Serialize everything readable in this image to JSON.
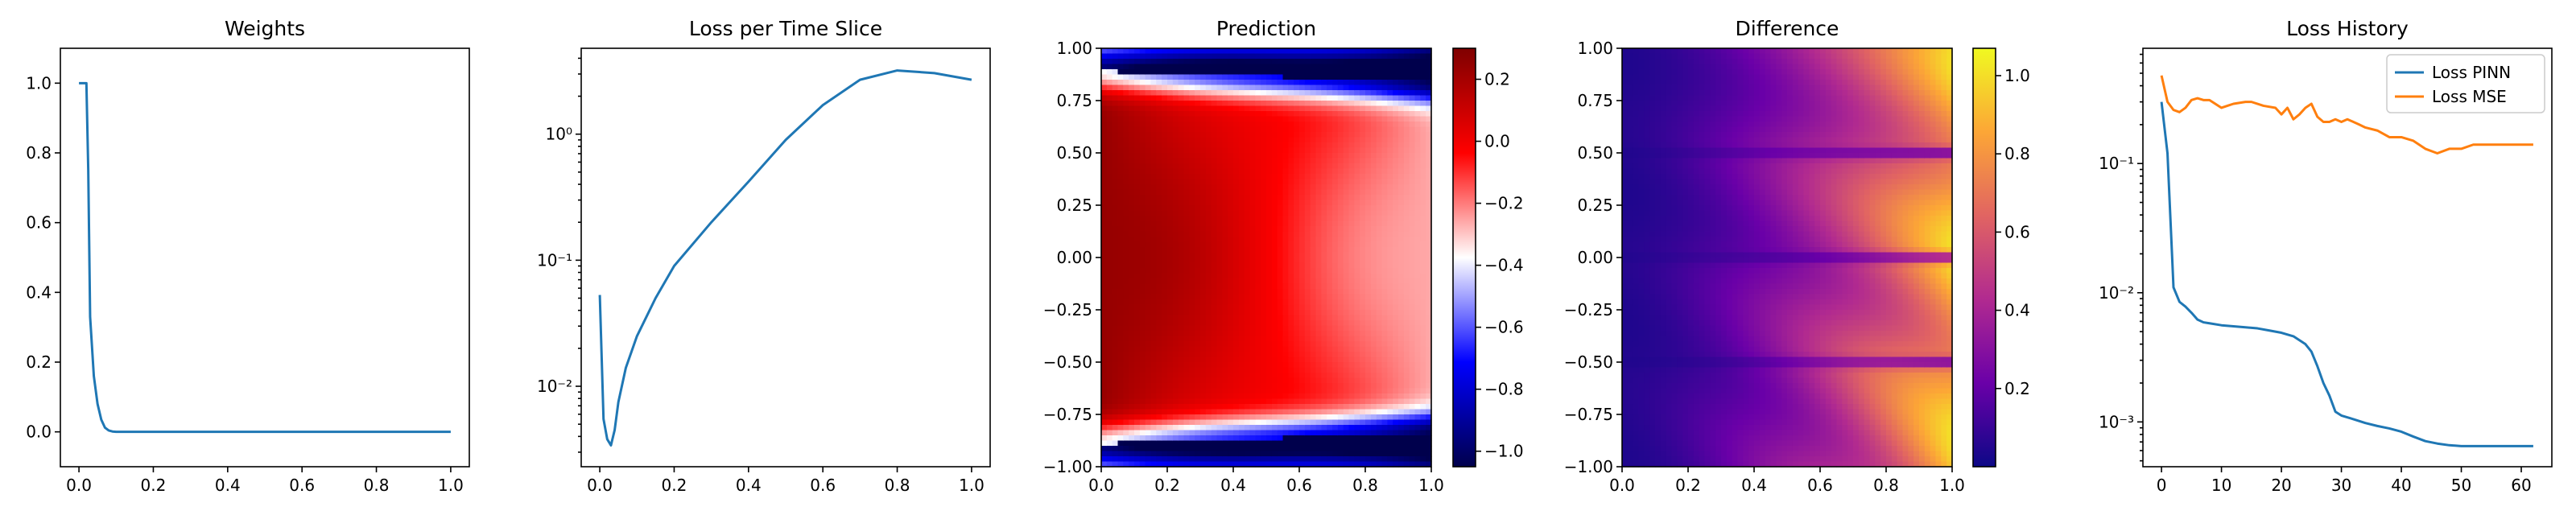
{
  "figure": {
    "panels": [
      "Weights",
      "Loss per Time Slice",
      "Prediction",
      "Difference",
      "Loss History"
    ]
  },
  "colors": {
    "blue": "#1f77b4",
    "orange": "#ff7f0e",
    "seismic": [
      "#00004c",
      "#0000ff",
      "#ffffff",
      "#ff0000",
      "#7f0000"
    ],
    "plasma": [
      "#0d0887",
      "#6a00a8",
      "#b12a90",
      "#e16462",
      "#fca636",
      "#f0f921"
    ]
  },
  "chart_data": [
    {
      "type": "line",
      "title": "Weights",
      "xlim": [
        -0.05,
        1.05
      ],
      "ylim": [
        -0.1,
        1.1
      ],
      "xticks": [
        0.0,
        0.2,
        0.4,
        0.6,
        0.8,
        1.0
      ],
      "xtick_labels": [
        "0.0",
        "0.2",
        "0.4",
        "0.6",
        "0.8",
        "1.0"
      ],
      "yticks": [
        0.0,
        0.2,
        0.4,
        0.6,
        0.8,
        1.0
      ],
      "ytick_labels": [
        "0.0",
        "0.2",
        "0.4",
        "0.6",
        "0.8",
        "1.0"
      ],
      "series": [
        {
          "x": [
            0.0,
            0.02,
            0.025,
            0.03,
            0.04,
            0.05,
            0.06,
            0.07,
            0.08,
            0.09,
            0.1,
            0.2,
            0.4,
            0.6,
            0.8,
            1.0
          ],
          "y": [
            1.0,
            1.0,
            0.75,
            0.33,
            0.16,
            0.08,
            0.035,
            0.012,
            0.004,
            0.001,
            0.0,
            0.0,
            0.0,
            0.0,
            0.0,
            0.0
          ]
        }
      ]
    },
    {
      "type": "line",
      "title": "Loss per Time Slice",
      "yscale": "log",
      "xlim": [
        -0.05,
        1.05
      ],
      "ylim": [
        0.0023,
        4.8
      ],
      "xticks": [
        0.0,
        0.2,
        0.4,
        0.6,
        0.8,
        1.0
      ],
      "xtick_labels": [
        "0.0",
        "0.2",
        "0.4",
        "0.6",
        "0.8",
        "1.0"
      ],
      "yticks": [
        0.01,
        0.1,
        1
      ],
      "ytick_labels": [
        "10⁻²",
        "10⁻¹",
        "10⁰"
      ],
      "series": [
        {
          "x": [
            0.0,
            0.01,
            0.02,
            0.03,
            0.04,
            0.05,
            0.07,
            0.1,
            0.15,
            0.2,
            0.3,
            0.4,
            0.5,
            0.6,
            0.7,
            0.8,
            0.9,
            1.0
          ],
          "y": [
            0.053,
            0.0055,
            0.0038,
            0.0034,
            0.0045,
            0.0075,
            0.014,
            0.025,
            0.05,
            0.09,
            0.2,
            0.42,
            0.9,
            1.7,
            2.7,
            3.2,
            3.05,
            2.7
          ]
        }
      ]
    },
    {
      "type": "heatmap",
      "title": "Prediction",
      "xlim": [
        0.0,
        1.0
      ],
      "ylim": [
        -1.0,
        1.0
      ],
      "xticks": [
        0.0,
        0.2,
        0.4,
        0.6,
        0.8,
        1.0
      ],
      "xtick_labels": [
        "0.0",
        "0.2",
        "0.4",
        "0.6",
        "0.8",
        "1.0"
      ],
      "yticks": [
        -1.0,
        -0.75,
        -0.5,
        -0.25,
        0.0,
        0.25,
        0.5,
        0.75,
        1.0
      ],
      "ytick_labels": [
        "−1.00",
        "−0.75",
        "−0.50",
        "−0.25",
        "0.00",
        "0.25",
        "0.50",
        "0.75",
        "1.00"
      ],
      "colormap": "seismic",
      "vlim": [
        -1.05,
        0.3
      ],
      "cbar_ticks": [
        -1.0,
        -0.8,
        -0.6,
        -0.4,
        -0.2,
        0.0,
        0.2
      ],
      "cbar_tick_labels": [
        "−1.0",
        "−0.8",
        "−0.6",
        "−0.4",
        "−0.2",
        "0.0",
        "0.2"
      ]
    },
    {
      "type": "heatmap",
      "title": "Difference",
      "xlim": [
        0.0,
        1.0
      ],
      "ylim": [
        -1.0,
        1.0
      ],
      "xticks": [
        0.0,
        0.2,
        0.4,
        0.6,
        0.8,
        1.0
      ],
      "xtick_labels": [
        "0.0",
        "0.2",
        "0.4",
        "0.6",
        "0.8",
        "1.0"
      ],
      "yticks": [
        -1.0,
        -0.75,
        -0.5,
        -0.25,
        0.0,
        0.25,
        0.5,
        0.75,
        1.0
      ],
      "ytick_labels": [
        "−1.00",
        "−0.75",
        "−0.50",
        "−0.25",
        "0.00",
        "0.25",
        "0.50",
        "0.75",
        "1.00"
      ],
      "colormap": "plasma",
      "vlim": [
        0.0,
        1.07
      ],
      "cbar_ticks": [
        0.2,
        0.4,
        0.6,
        0.8,
        1.0
      ],
      "cbar_tick_labels": [
        "0.2",
        "0.4",
        "0.6",
        "0.8",
        "1.0"
      ]
    },
    {
      "type": "line",
      "title": "Loss History",
      "yscale": "log",
      "xlim": [
        -3.1,
        65.1
      ],
      "ylim": [
        0.00045,
        0.78
      ],
      "xticks": [
        0,
        10,
        20,
        30,
        40,
        50,
        60
      ],
      "xtick_labels": [
        "0",
        "10",
        "20",
        "30",
        "40",
        "50",
        "60"
      ],
      "yticks": [
        0.001,
        0.01,
        0.1
      ],
      "ytick_labels": [
        "10⁻³",
        "10⁻²",
        "10⁻¹"
      ],
      "legend": "top-right",
      "series": [
        {
          "name": "Loss PINN",
          "x": [
            0,
            1,
            2,
            3,
            4,
            5,
            6,
            7,
            8,
            10,
            12,
            14,
            16,
            18,
            20,
            22,
            24,
            25,
            26,
            27,
            28,
            29,
            30,
            32,
            34,
            36,
            38,
            40,
            42,
            44,
            46,
            48,
            50,
            52,
            54,
            56,
            58,
            60,
            62
          ],
          "y": [
            0.3,
            0.12,
            0.011,
            0.0085,
            0.0078,
            0.007,
            0.0062,
            0.0059,
            0.0058,
            0.0056,
            0.0055,
            0.0054,
            0.0053,
            0.0051,
            0.0049,
            0.0046,
            0.004,
            0.0035,
            0.0027,
            0.002,
            0.0016,
            0.0012,
            0.00112,
            0.00105,
            0.00098,
            0.00093,
            0.00089,
            0.00084,
            0.00077,
            0.00071,
            0.00068,
            0.00066,
            0.00065,
            0.00065,
            0.00065,
            0.00065,
            0.00065,
            0.00065,
            0.00065
          ]
        },
        {
          "name": "Loss MSE",
          "x": [
            0,
            1,
            2,
            3,
            4,
            5,
            6,
            7,
            8,
            10,
            11,
            12,
            14,
            15,
            17,
            19,
            20,
            21,
            22,
            23,
            24,
            25,
            26,
            27,
            28,
            29,
            30,
            31,
            32,
            33,
            34,
            36,
            38,
            40,
            42,
            44,
            46,
            48,
            50,
            52,
            54,
            56,
            58,
            60,
            62
          ],
          "y": [
            0.48,
            0.3,
            0.26,
            0.25,
            0.27,
            0.31,
            0.32,
            0.31,
            0.31,
            0.27,
            0.28,
            0.29,
            0.3,
            0.3,
            0.28,
            0.27,
            0.24,
            0.27,
            0.22,
            0.24,
            0.27,
            0.29,
            0.23,
            0.21,
            0.21,
            0.22,
            0.21,
            0.22,
            0.21,
            0.2,
            0.19,
            0.18,
            0.16,
            0.16,
            0.15,
            0.13,
            0.12,
            0.13,
            0.13,
            0.14,
            0.14,
            0.14,
            0.14,
            0.14,
            0.14
          ]
        }
      ]
    }
  ]
}
